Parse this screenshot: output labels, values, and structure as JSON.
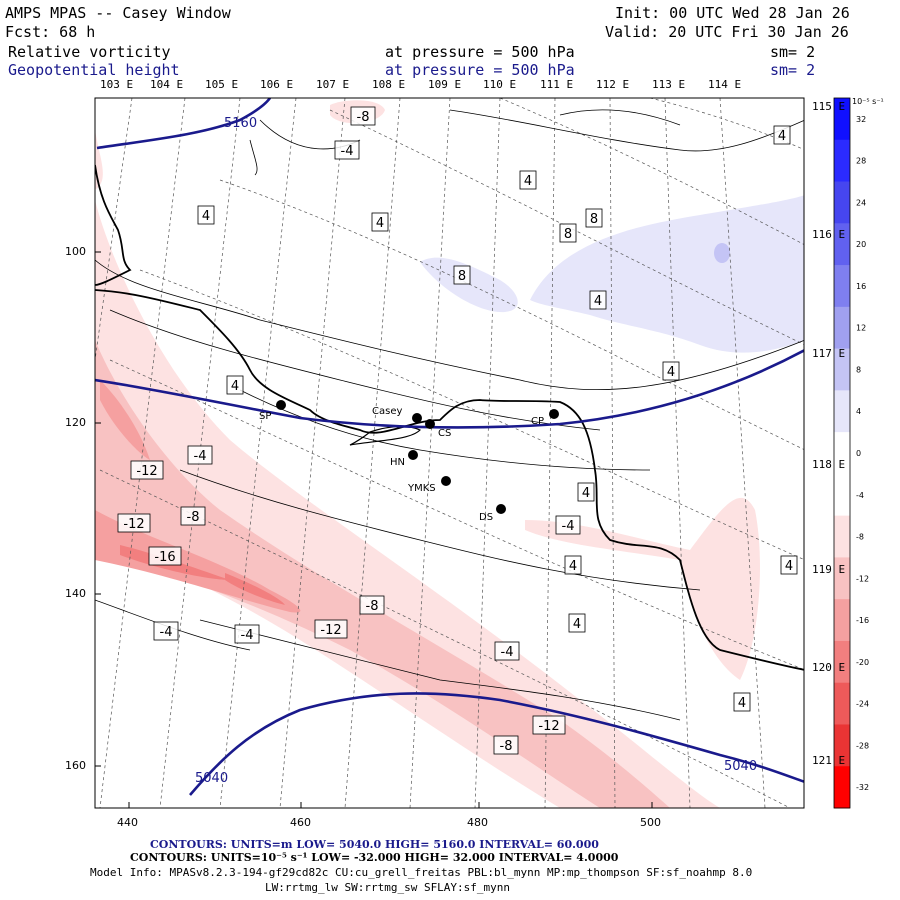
{
  "header": {
    "title": "AMPS MPAS -- Casey Window",
    "init": "Init: 00 UTC Wed 28 Jan 26",
    "fcst": "Fcst:   68 h",
    "valid": "Valid: 20 UTC Fri 30 Jan 26",
    "field1_name": "Relative vorticity",
    "field1_level": "at pressure =  500 hPa",
    "field1_sm": "sm= 2",
    "field2_name": "Geopotential height",
    "field2_level": "at pressure =  500 hPa",
    "field2_sm": "sm= 2"
  },
  "lon_top": [
    "103 E",
    "104 E",
    "105 E",
    "106 E",
    "107 E",
    "108 E",
    "109 E",
    "110 E",
    "111 E",
    "112 E",
    "113 E",
    "114 E"
  ],
  "lon_right": [
    "115 E",
    "116 E",
    "117 E",
    "118 E",
    "119 E",
    "120 E",
    "121 E"
  ],
  "x_axis": [
    "440",
    "460",
    "480",
    "500"
  ],
  "y_axis": [
    "100",
    "120",
    "140",
    "160"
  ],
  "colorbar": {
    "unit": "10⁻⁵ s⁻¹",
    "ticks": [
      "32",
      "28",
      "24",
      "20",
      "16",
      "12",
      "8",
      "4",
      "0",
      "-4",
      "-8",
      "-12",
      "-16",
      "-20",
      "-24",
      "-28",
      "-32"
    ],
    "colors": [
      "#1010ff",
      "#2b2bff",
      "#4646f0",
      "#6161f0",
      "#7f7ff0",
      "#a0a0f0",
      "#c4c4f5",
      "#e6e6fa",
      "#ffffff",
      "#ffffff",
      "#fde2e2",
      "#f8c2c2",
      "#f5a0a0",
      "#f27f7f",
      "#ee5a5a",
      "#ea3434",
      "#ff0000"
    ]
  },
  "height_labels": [
    "5160",
    "5040",
    "5040"
  ],
  "vort_labels": [
    "-8",
    "-4",
    "4",
    "4",
    "4",
    "4",
    "8",
    "8",
    "8",
    "4",
    "4",
    "4",
    "-4",
    "-12",
    "-8",
    "-12",
    "-16",
    "-4",
    "-4",
    "-8",
    "-12",
    "-4",
    "-4",
    "4",
    "4",
    "4",
    "-12",
    "-8",
    "4",
    "4"
  ],
  "stations": [
    {
      "name": "SP"
    },
    {
      "name": "Casey"
    },
    {
      "name": "CS"
    },
    {
      "name": "CP"
    },
    {
      "name": "HN"
    },
    {
      "name": "YMKS"
    },
    {
      "name": "DS"
    }
  ],
  "footer": {
    "line1": "CONTOURS:  UNITS=m  LOW=  5040.0         HIGH=  5160.0        INTERVAL=   60.000",
    "line2": "CONTOURS:  UNITS=10⁻⁵ s⁻¹   LOW= -32.000        HIGH=  32.000        INTERVAL=   4.0000",
    "info1": "Model Info: MPASv8.2.3-194-gf29cd82c CU:cu_grell_freitas PBL:bl_mynn MP:mp_thompson SF:sf_noahmp 8.0",
    "info2": "LW:rrtmg_lw SW:rrtmg_sw SFLAY:sf_mynn"
  }
}
